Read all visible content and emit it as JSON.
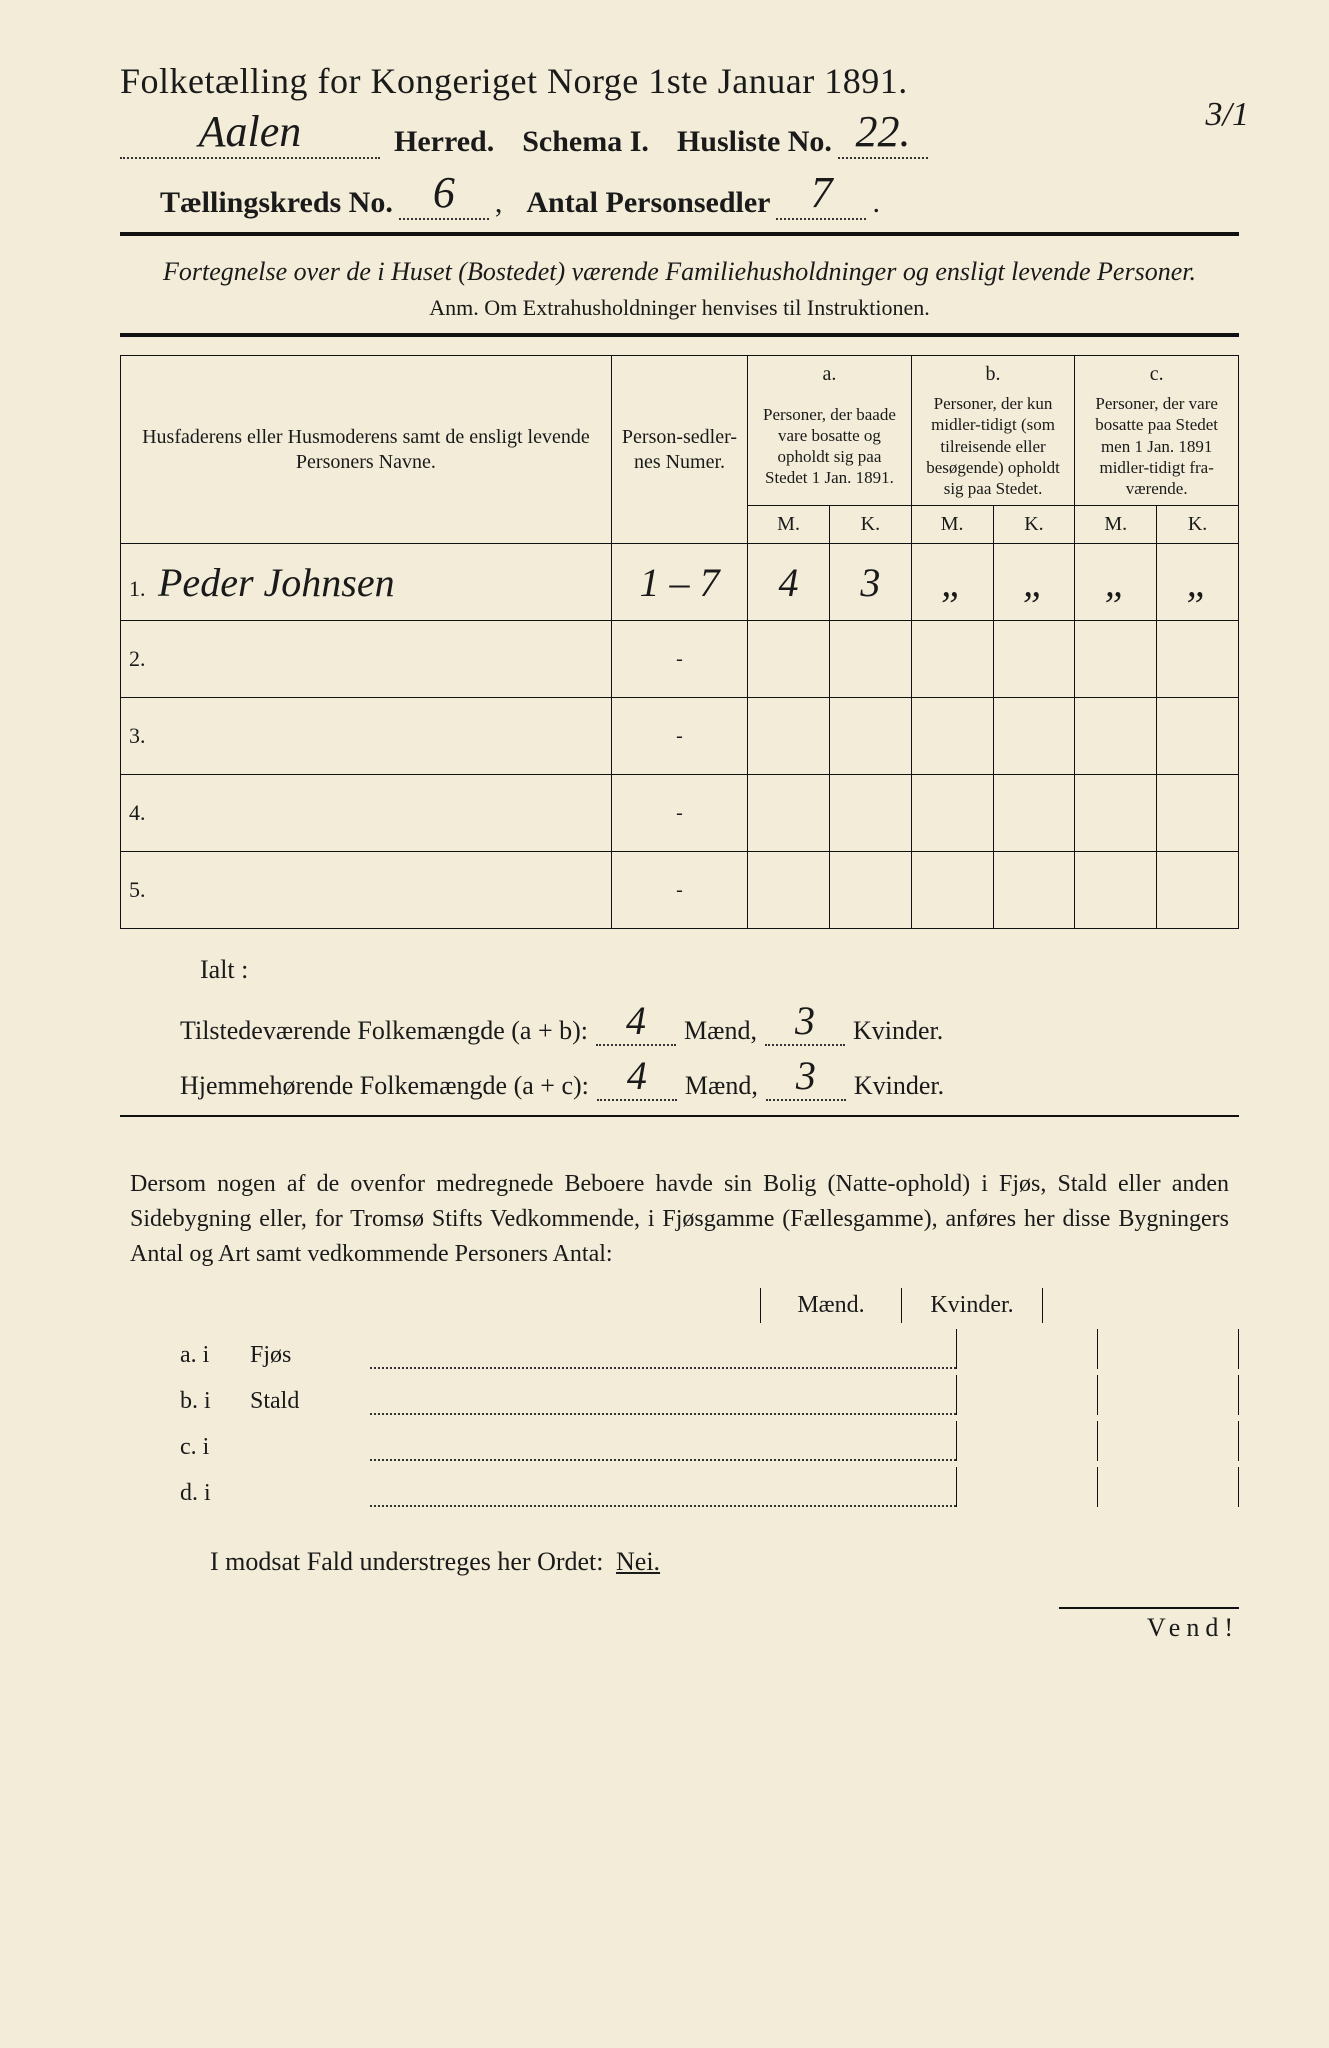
{
  "header": {
    "title": "Folketælling for Kongeriget Norge 1ste Januar 1891.",
    "herred_value": "Aalen",
    "herred_label": "Herred.",
    "schema_label": "Schema I.",
    "husliste_label": "Husliste No.",
    "husliste_value": "22.",
    "husliste_frac": "3/1",
    "kreds_label": "Tællingskreds No.",
    "kreds_value": "6",
    "personsedler_label": "Antal Personsedler",
    "personsedler_value": "7"
  },
  "subtitle": "Fortegnelse over de i Huset (Bostedet) værende Familiehusholdninger og ensligt levende Personer.",
  "anm": "Anm. Om Extrahusholdninger henvises til Instruktionen.",
  "table": {
    "head_name": "Husfaderens eller Husmoderens samt de ensligt levende Personers Navne.",
    "head_num": "Person-sedler-nes Numer.",
    "head_a_top": "a.",
    "head_a": "Personer, der baade vare bosatte og opholdt sig paa Stedet 1 Jan. 1891.",
    "head_b_top": "b.",
    "head_b": "Personer, der kun midler-tidigt (som tilreisende eller besøgende) opholdt sig paa Stedet.",
    "head_c_top": "c.",
    "head_c": "Personer, der vare bosatte paa Stedet men 1 Jan. 1891 midler-tidigt fra-værende.",
    "M": "M.",
    "K": "K.",
    "rows": [
      {
        "n": "1.",
        "name": "Peder Johnsen",
        "num": "1 – 7",
        "aM": "4",
        "aK": "3",
        "bM": "„",
        "bK": "„",
        "cM": "„",
        "cK": "„"
      },
      {
        "n": "2.",
        "name": "",
        "num": "-",
        "aM": "",
        "aK": "",
        "bM": "",
        "bK": "",
        "cM": "",
        "cK": ""
      },
      {
        "n": "3.",
        "name": "",
        "num": "-",
        "aM": "",
        "aK": "",
        "bM": "",
        "bK": "",
        "cM": "",
        "cK": ""
      },
      {
        "n": "4.",
        "name": "",
        "num": "-",
        "aM": "",
        "aK": "",
        "bM": "",
        "bK": "",
        "cM": "",
        "cK": ""
      },
      {
        "n": "5.",
        "name": "",
        "num": "-",
        "aM": "",
        "aK": "",
        "bM": "",
        "bK": "",
        "cM": "",
        "cK": ""
      }
    ]
  },
  "ialt": "Ialt :",
  "totals": {
    "line1_label": "Tilstedeværende Folkemængde (a + b):",
    "line1_m": "4",
    "line1_k": "3",
    "line2_label": "Hjemmehørende Folkemængde (a + c):",
    "line2_m": "4",
    "line2_k": "3",
    "maend": "Mænd,",
    "kvinder": "Kvinder."
  },
  "para": "Dersom nogen af de ovenfor medregnede Beboere havde sin Bolig (Natte-ophold) i Fjøs, Stald eller anden Sidebygning eller, for Tromsø Stifts Vedkommende, i Fjøsgamme (Fællesgamme), anføres her disse Bygningers Antal og Art samt vedkommende Personers Antal:",
  "bld": {
    "maend": "Mænd.",
    "kvinder": "Kvinder.",
    "rows": [
      {
        "k": "a.  i",
        "label": "Fjøs"
      },
      {
        "k": "b.  i",
        "label": "Stald"
      },
      {
        "k": "c.  i",
        "label": ""
      },
      {
        "k": "d.  i",
        "label": ""
      }
    ]
  },
  "nei_line_pre": "I modsat Fald understreges her Ordet:",
  "nei": "Nei.",
  "vend": "Vend!",
  "colors": {
    "paper": "#f2ecd8",
    "ink": "#1a1a1a"
  }
}
